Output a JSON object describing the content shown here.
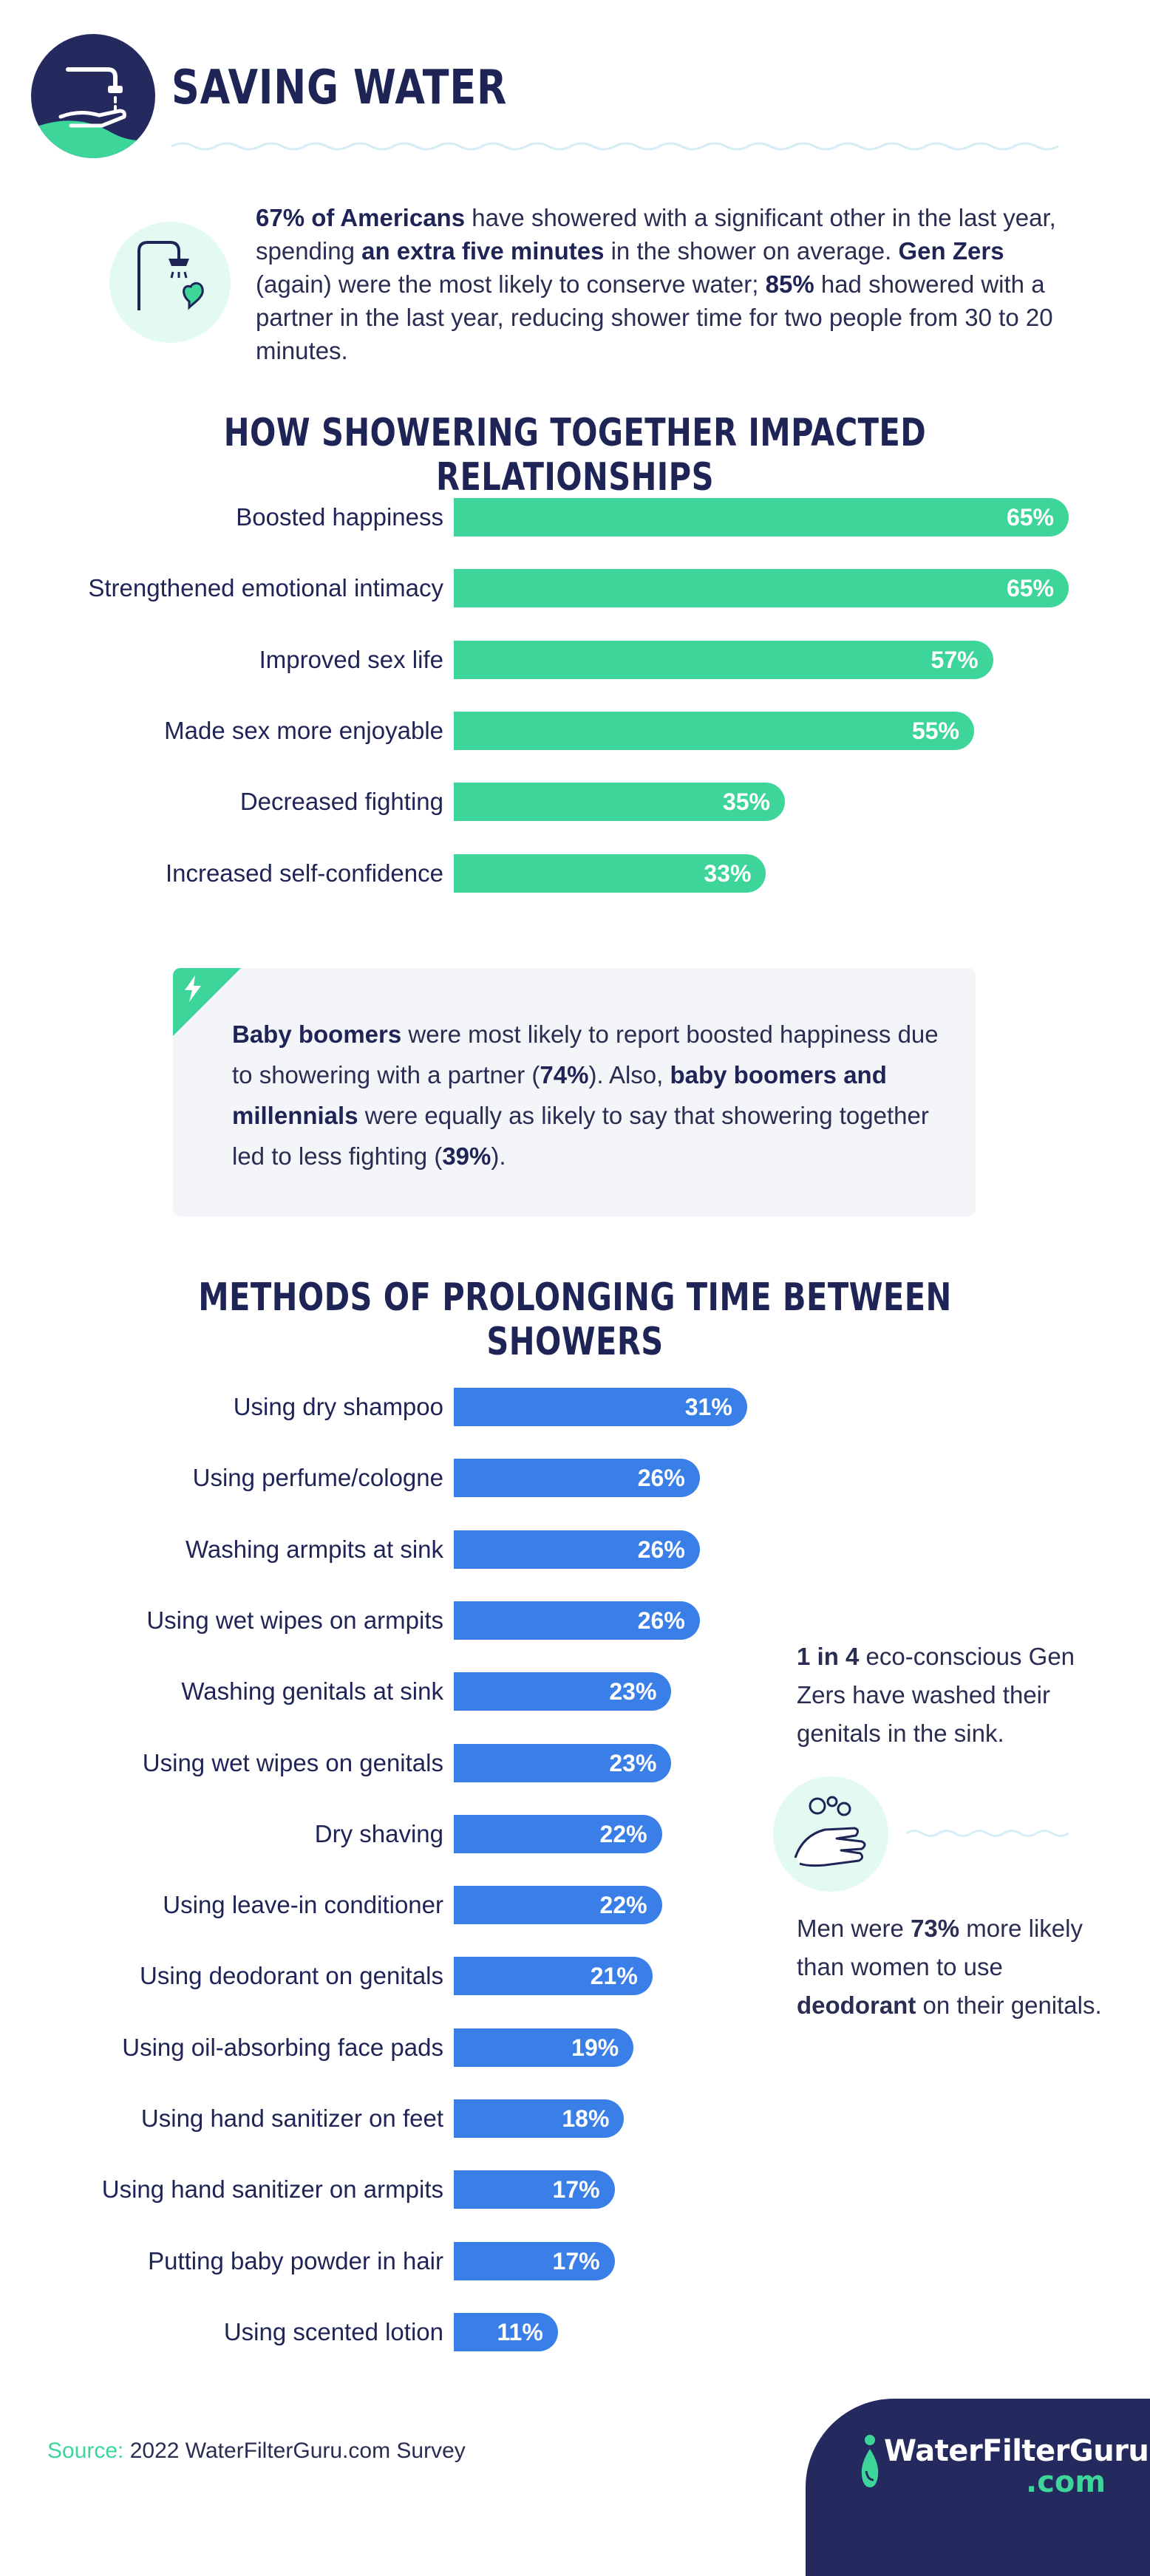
{
  "header": {
    "title": "SAVING WATER"
  },
  "intro": {
    "p1": "67% of Americans",
    "p2": " have showered with a significant other in the last year, spending ",
    "p3": "an extra five minutes",
    "p4": " in the shower on average. ",
    "p5": "Gen Zers",
    "p6": " (again) were the most likely to conserve water; ",
    "p7": "85%",
    "p8": " had showered with a partner in the last year, reducing shower time for two people from 30 to 20 minutes."
  },
  "chart_data": [
    {
      "type": "bar",
      "orientation": "horizontal",
      "title": "HOW SHOWERING TOGETHER IMPACTED RELATIONSHIPS",
      "color": "#3ed59a",
      "xlim": [
        0,
        100
      ],
      "categories": [
        "Boosted happiness",
        "Strengthened emotional intimacy",
        "Improved sex life",
        "Made sex more enjoyable",
        "Decreased fighting",
        "Increased self-confidence"
      ],
      "values": [
        65,
        65,
        57,
        55,
        35,
        33
      ],
      "value_labels": [
        "65%",
        "65%",
        "57%",
        "55%",
        "35%",
        "33%"
      ]
    },
    {
      "type": "bar",
      "orientation": "horizontal",
      "title": "METHODS OF PROLONGING TIME BETWEEN SHOWERS",
      "color": "#3a7ee8",
      "xlim": [
        0,
        100
      ],
      "categories": [
        "Using dry shampoo",
        "Using perfume/cologne",
        "Washing armpits at sink",
        "Using wet wipes on armpits",
        "Washing genitals at sink",
        "Using wet wipes on genitals",
        "Dry shaving",
        "Using leave-in conditioner",
        "Using deodorant on genitals",
        "Using oil-absorbing face pads",
        "Using hand sanitizer on feet",
        "Using hand sanitizer on armpits",
        "Putting baby powder in hair",
        "Using scented lotion"
      ],
      "values": [
        31,
        26,
        26,
        26,
        23,
        23,
        22,
        22,
        21,
        19,
        18,
        17,
        17,
        11
      ],
      "value_labels": [
        "31%",
        "26%",
        "26%",
        "26%",
        "23%",
        "23%",
        "22%",
        "22%",
        "21%",
        "19%",
        "18%",
        "17%",
        "17%",
        "11%"
      ]
    }
  ],
  "callout": {
    "p1": "Baby boomers",
    "p2": " were most likely to report boosted happiness due to showering with a partner (",
    "p3": "74%",
    "p4": "). Also, ",
    "p5": "baby boomers and millennials",
    "p6": " were equally as likely to say that showering together led to less fighting (",
    "p7": "39%",
    "p8": ")."
  },
  "notes": {
    "note1_bold": "1 in 4",
    "note1_rest": " eco-conscious Gen Zers have washed their genitals in the sink.",
    "note2_a": "Men were ",
    "note2_b": "73%",
    "note2_c": " more likely than women to use ",
    "note2_d": "deodorant",
    "note2_e": " on their genitals."
  },
  "footer": {
    "source_label": "Source:",
    "source_text": " 2022 WaterFilterGuru.com Survey",
    "logo_name": "WaterFilterGuru",
    "logo_suffix": ".com"
  },
  "icons": {
    "header": "faucet-hand-icon",
    "intro": "shower-heart-icon",
    "callout": "lightning-icon",
    "note": "hand-washing-icon",
    "logo": "person-drop-icon"
  }
}
